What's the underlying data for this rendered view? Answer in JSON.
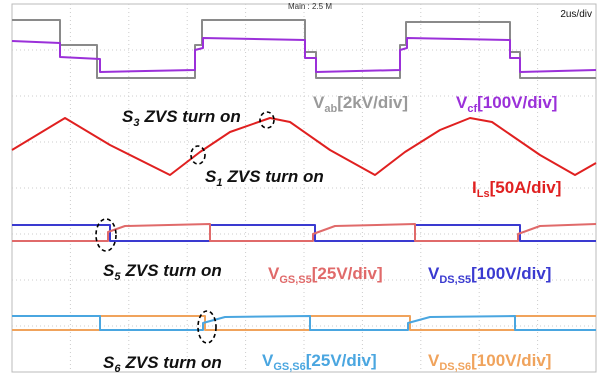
{
  "header": {
    "timebase": "Main : 2.5 M",
    "scale": "2us/div"
  },
  "annotations": [
    {
      "symbol": "S",
      "subscript": "3",
      "text": "ZVS turn on"
    },
    {
      "symbol": "S",
      "subscript": "1",
      "text": "ZVS turn on"
    },
    {
      "symbol": "S",
      "subscript": "5",
      "text": "ZVS turn on"
    },
    {
      "symbol": "S",
      "subscript": "6",
      "text": "ZVS turn on"
    }
  ],
  "channels": [
    {
      "symbol": "V",
      "subscript": "ab",
      "scale": "[2kV/div]"
    },
    {
      "symbol": "V",
      "subscript": "cf",
      "scale": "[100V/div]"
    },
    {
      "symbol": "I",
      "subscript": "Ls",
      "scale": "[50A/div]"
    },
    {
      "symbol": "V",
      "subscript": "GS,S5",
      "scale": "[25V/div]"
    },
    {
      "symbol": "V",
      "subscript": "DS,S5",
      "scale": "[100V/div]"
    },
    {
      "symbol": "V",
      "subscript": "GS,S6",
      "scale": "[25V/div]"
    },
    {
      "symbol": "V",
      "subscript": "DS,S6",
      "scale": "[100V/div]"
    }
  ]
}
